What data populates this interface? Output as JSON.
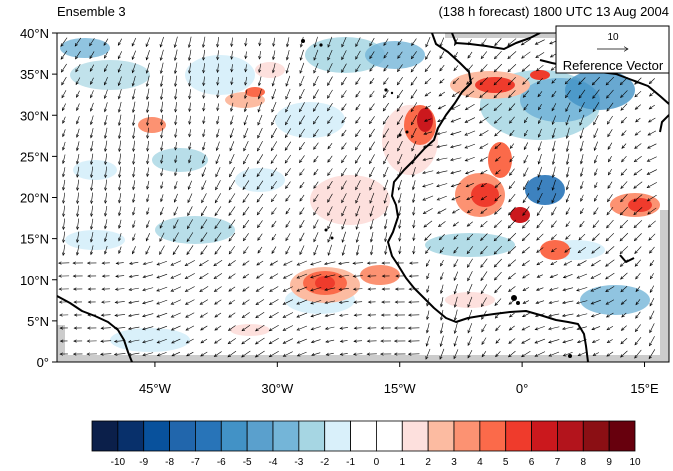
{
  "header": {
    "left_title": "Ensemble 3",
    "right_title": "(138 h forecast) 1800 UTC 13 Aug 2004"
  },
  "map": {
    "lat_range": [
      0,
      40
    ],
    "lon_range": [
      -57,
      18
    ],
    "lat_ticks": [
      {
        "value": 0,
        "label": "0°"
      },
      {
        "value": 5,
        "label": "5°N"
      },
      {
        "value": 10,
        "label": "10°N"
      },
      {
        "value": 15,
        "label": "15°N"
      },
      {
        "value": 20,
        "label": "20°N"
      },
      {
        "value": 25,
        "label": "25°N"
      },
      {
        "value": 30,
        "label": "30°N"
      },
      {
        "value": 35,
        "label": "35°N"
      },
      {
        "value": 40,
        "label": "40°N"
      }
    ],
    "lon_ticks": [
      {
        "value": -45,
        "label": "45°W"
      },
      {
        "value": -30,
        "label": "30°W"
      },
      {
        "value": -15,
        "label": "15°W"
      },
      {
        "value": 0,
        "label": "0°"
      },
      {
        "value": 15,
        "label": "15°E"
      }
    ],
    "coastline_color": "#000000",
    "vector_color": "#000000"
  },
  "reference_vector": {
    "value": "10",
    "label": "Reference Vector"
  },
  "colorbar": {
    "colors": [
      "#0b1f4a",
      "#08306b",
      "#08519c",
      "#2166ac",
      "#2874b8",
      "#4292c6",
      "#5aa0cd",
      "#74b5d8",
      "#a6d6e3",
      "#d9f0fa",
      "#ffffff",
      "#ffffff",
      "#fde0dd",
      "#fcbba1",
      "#fc9272",
      "#fb6a4a",
      "#ef3b2c",
      "#cb181d",
      "#b3141c",
      "#8b0f14",
      "#67000d"
    ],
    "labels": [
      "-10",
      "-9",
      "-8",
      "-7",
      "-6",
      "-5",
      "-4",
      "-3",
      "-2",
      "-1",
      "0",
      "1",
      "2",
      "3",
      "4",
      "5",
      "6",
      "7",
      "8",
      "9",
      "10"
    ]
  }
}
